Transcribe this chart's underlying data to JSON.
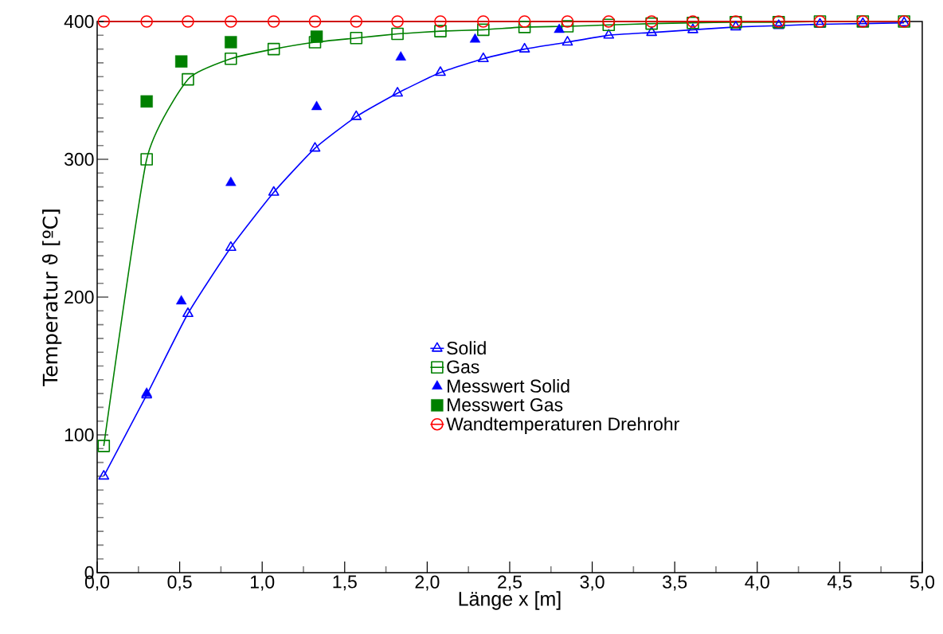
{
  "chart_data": {
    "type": "line",
    "xlabel": "Länge x [m]",
    "ylabel": "Temperatur ϑ [ºC]",
    "xlim": [
      0,
      5
    ],
    "ylim": [
      0,
      400
    ],
    "xticks": [
      {
        "value": 0,
        "label": "0,0"
      },
      {
        "value": 0.5,
        "label": "0,5"
      },
      {
        "value": 1,
        "label": "1,0"
      },
      {
        "value": 1.5,
        "label": "1,5"
      },
      {
        "value": 2,
        "label": "2,0"
      },
      {
        "value": 2.5,
        "label": "2,5"
      },
      {
        "value": 3,
        "label": "3,0"
      },
      {
        "value": 3.5,
        "label": "3,5"
      },
      {
        "value": 4,
        "label": "4,0"
      },
      {
        "value": 4.5,
        "label": "4,5"
      },
      {
        "value": 5,
        "label": "5,0"
      }
    ],
    "yticks": [
      0,
      100,
      200,
      300,
      400
    ],
    "grid": false,
    "legend": "center",
    "series": [
      {
        "name": "Solid",
        "type": "line",
        "marker": "triangle",
        "color": "#0000ff",
        "x": [
          0.04,
          0.3,
          0.55,
          0.81,
          1.07,
          1.32,
          1.57,
          1.82,
          2.08,
          2.34,
          2.59,
          2.85,
          3.1,
          3.36,
          3.61,
          3.87,
          4.13,
          4.38,
          4.64,
          4.89
        ],
        "values": [
          70,
          129,
          188,
          236,
          276,
          308,
          331,
          348,
          363,
          373,
          380,
          385,
          390,
          392,
          394,
          396,
          397,
          398,
          398.5,
          399
        ]
      },
      {
        "name": "Gas",
        "type": "line",
        "marker": "square",
        "color": "#008000",
        "x": [
          0.04,
          0.3,
          0.55,
          0.81,
          1.07,
          1.32,
          1.57,
          1.82,
          2.08,
          2.34,
          2.59,
          2.85,
          3.1,
          3.36,
          3.61,
          3.87,
          4.13,
          4.38,
          4.64,
          4.89
        ],
        "values": [
          92,
          300,
          358,
          373,
          380,
          385,
          388,
          391,
          393,
          394,
          396,
          396.5,
          397.5,
          398.5,
          399,
          399.5,
          399.5,
          400,
          400,
          400
        ]
      },
      {
        "name": "Messwert Solid",
        "type": "scatter",
        "marker": "triangle",
        "color": "#0000ff",
        "x": [
          0.3,
          0.51,
          0.81,
          1.33,
          1.84,
          2.29,
          2.8
        ],
        "values": [
          130,
          197,
          283,
          338,
          374,
          387,
          394
        ]
      },
      {
        "name": "Messwert Gas",
        "type": "scatter",
        "marker": "square",
        "color": "#008000",
        "x": [
          0.3,
          0.51,
          0.81,
          1.33
        ],
        "values": [
          342,
          371,
          385,
          389
        ]
      },
      {
        "name": "Wandtemperaturen Drehrohr",
        "type": "line",
        "marker": "circle",
        "color": "#ff0000",
        "x": [
          0.04,
          0.3,
          0.55,
          0.81,
          1.07,
          1.32,
          1.57,
          1.82,
          2.08,
          2.34,
          2.59,
          2.85,
          3.1,
          3.36,
          3.61,
          3.87,
          4.13,
          4.38,
          4.64,
          4.89
        ],
        "values": [
          400,
          400,
          400,
          400,
          400,
          400,
          400,
          400,
          400,
          400,
          400,
          400,
          400,
          400,
          400,
          400,
          400,
          400,
          400,
          400
        ]
      }
    ]
  }
}
